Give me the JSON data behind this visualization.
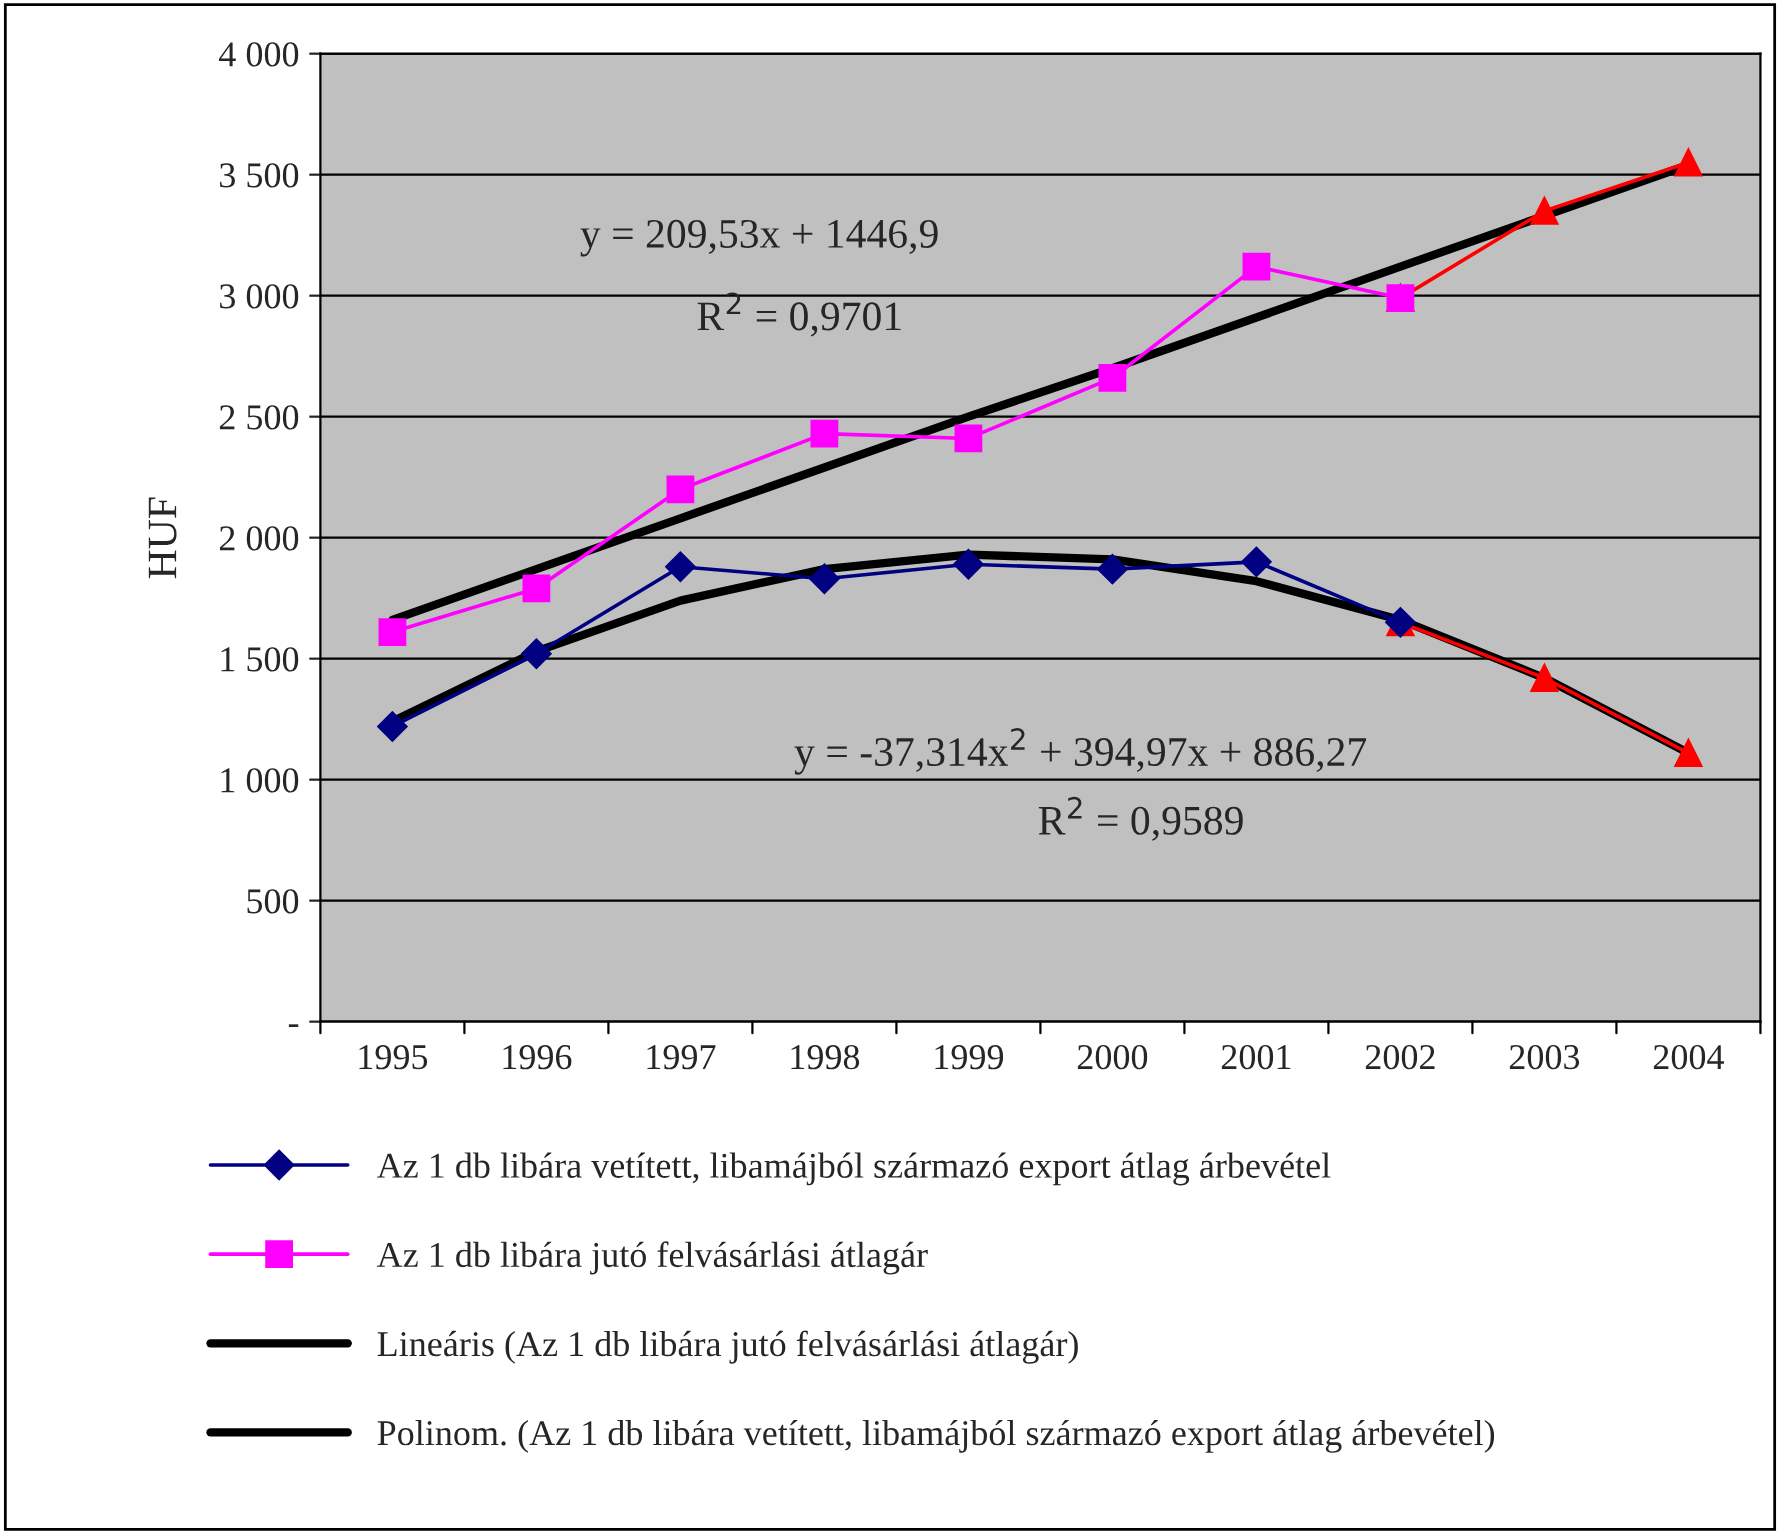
{
  "chart_data": {
    "type": "line",
    "categories": [
      "1995",
      "1996",
      "1997",
      "1998",
      "1999",
      "2000",
      "2001",
      "2002",
      "2003",
      "2004"
    ],
    "series": [
      {
        "color": "#ff0000",
        "marker": "triangle",
        "values": [
          null,
          null,
          null,
          null,
          null,
          null,
          null,
          1650,
          1420,
          1110
        ]
      },
      {
        "color": "#ff0000",
        "marker": "triangle",
        "values": [
          null,
          null,
          null,
          null,
          null,
          null,
          null,
          2990,
          3350,
          3550
        ]
      },
      {
        "name": "Az 1 db libára vetített, libamájból származó export átlag árbevétel",
        "color": "#000080",
        "marker": "diamond",
        "values": [
          1220,
          1520,
          1880,
          1830,
          1890,
          1870,
          1900,
          1650,
          null,
          null
        ]
      },
      {
        "name": "Az 1 db libára jutó felvásárlási átlagár",
        "color": "#ff00ff",
        "marker": "square",
        "values": [
          1610,
          1790,
          2200,
          2430,
          2410,
          2660,
          3120,
          2990,
          null,
          null
        ]
      },
      {
        "name": "Lineáris (Az 1 db libára jutó felvásárlási átlagár)",
        "color": "#000000",
        "marker": "none",
        "values": [
          1660,
          1870,
          2080,
          2290,
          2500,
          2700,
          2910,
          3120,
          3330,
          3540
        ]
      },
      {
        "name": "Polinom. (Az 1 db libára vetített, libamájból származó export átlag árbevétel)",
        "color": "#000000",
        "marker": "none",
        "values": [
          1240,
          1530,
          1740,
          1870,
          1930,
          1910,
          1820,
          1660,
          1420,
          1110
        ]
      }
    ],
    "ylabel": "HUF",
    "ylim": [
      0,
      4000
    ],
    "yticks": [
      {
        "value": 0,
        "label": "-"
      },
      500,
      {
        "value": 1000,
        "label": "1 000"
      },
      {
        "value": 1500,
        "label": "1 500"
      },
      {
        "value": 2000,
        "label": "2 000"
      },
      {
        "value": 2500,
        "label": "2 500"
      },
      {
        "value": 3000,
        "label": "3 000"
      },
      {
        "value": 3500,
        "label": "3 500"
      },
      {
        "value": 4000,
        "label": "4 000"
      }
    ],
    "grid": "y",
    "legend": "bottom",
    "annotations": [
      "y = 209,53x + 1446,9",
      "R$^{2}$ = 0,9701",
      "y = -37,314x$^{2}$ + 394,97x + 886,27",
      "R$^{2}$ = 0,9589"
    ]
  }
}
